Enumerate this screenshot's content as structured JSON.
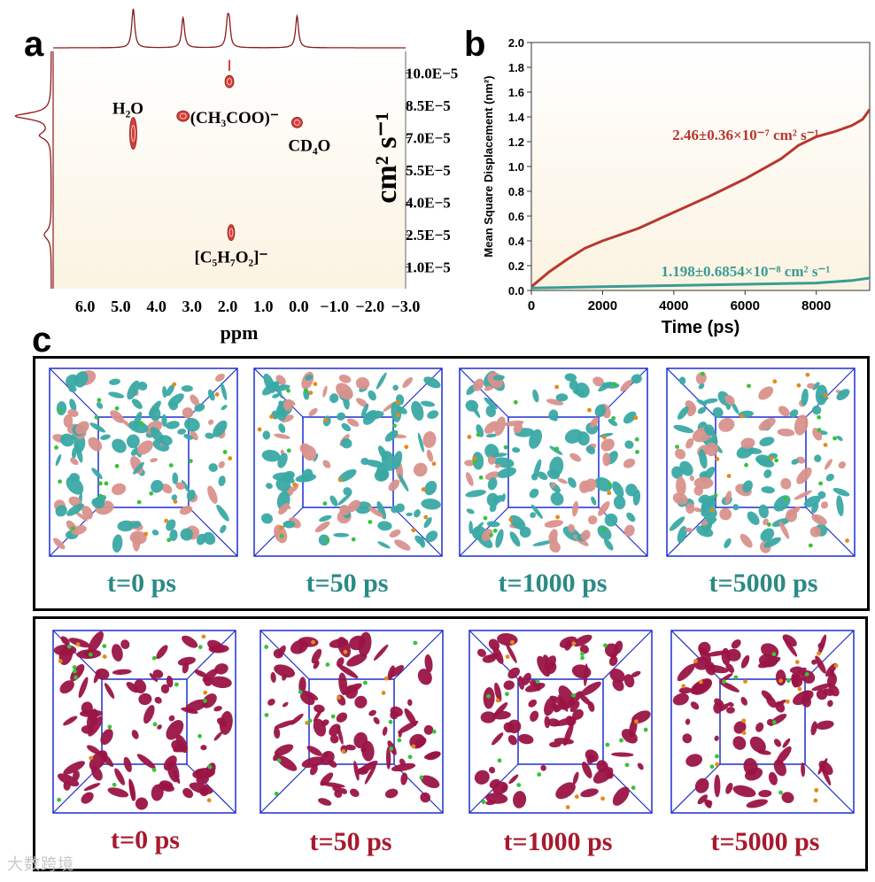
{
  "panels": {
    "a": "a",
    "b": "b",
    "c": "c"
  },
  "chart_data": [
    {
      "type": "heatmap",
      "name": "DOSY NMR spectrum",
      "xlabel": "ppm",
      "ylabel": "cm² s⁻¹",
      "xlim": [
        6.9,
        -3.0
      ],
      "x_ticks": [
        {
          "value": 6.0,
          "label": "6.0"
        },
        {
          "value": 5.0,
          "label": "5.0"
        },
        {
          "value": 4.0,
          "label": "4.0"
        },
        {
          "value": 3.0,
          "label": "3.0"
        },
        {
          "value": 2.0,
          "label": "2.0"
        },
        {
          "value": 1.0,
          "label": "1.0"
        },
        {
          "value": 0.0,
          "label": "0.0"
        },
        {
          "value": -1.0,
          "label": "−1.0"
        },
        {
          "value": -2.0,
          "label": "−2.0"
        },
        {
          "value": -3.0,
          "label": "−3.0"
        }
      ],
      "y_ticks": [
        {
          "value": 10.0,
          "label": "10.0E−5"
        },
        {
          "value": 8.5,
          "label": "8.5E−5"
        },
        {
          "value": 7.0,
          "label": "7.0E−5"
        },
        {
          "value": 5.5,
          "label": "5.5E−5"
        },
        {
          "value": 4.0,
          "label": "4.0E−5"
        },
        {
          "value": 2.5,
          "label": "2.5E−5"
        },
        {
          "value": 1.0,
          "label": "1.0E−5"
        }
      ],
      "signals": [
        {
          "name": "water-signal",
          "ppm": 4.65,
          "diffusion": 7.2,
          "label": "H₂O"
        },
        {
          "name": "acetate-signal",
          "ppm": 3.25,
          "diffusion": 8.0,
          "label": "(CH₃COO)⁻"
        },
        {
          "name": "acac-signal",
          "ppm": 1.9,
          "diffusion": 2.6,
          "label": "[C₅H₇O₂]⁻"
        },
        {
          "name": "methanol-signal",
          "ppm": 0.05,
          "diffusion": 7.7,
          "label": "CD₄O"
        },
        {
          "name": "signal-2ppm",
          "ppm": 1.95,
          "diffusion": 9.6,
          "label": ""
        }
      ],
      "projection_peaks_ppm": [
        4.65,
        3.25,
        2.0,
        1.95,
        0.05
      ],
      "projection_peaks_diffusion": [
        8.0,
        7.0,
        2.5
      ]
    },
    {
      "type": "line",
      "name": "Mean square displacement",
      "xlabel": "Time (ps)",
      "ylabel": "Mean Square Displacement (nm²)",
      "xlim": [
        0,
        9500
      ],
      "ylim": [
        0,
        2.0
      ],
      "x_ticks": [
        0,
        2000,
        4000,
        6000,
        8000
      ],
      "y_ticks": [
        0.0,
        0.2,
        0.4,
        0.6,
        0.8,
        1.0,
        1.2,
        1.4,
        1.6,
        1.8,
        2.0
      ],
      "series": [
        {
          "name": "upper",
          "color": "#b8372f",
          "annotation": "2.46±0.36×10⁻⁷ cm² s⁻¹",
          "x": [
            0,
            500,
            1000,
            1500,
            2000,
            3000,
            4000,
            5000,
            6000,
            7000,
            7500,
            8000,
            8500,
            9000,
            9300,
            9500
          ],
          "y": [
            0.03,
            0.15,
            0.25,
            0.34,
            0.4,
            0.5,
            0.63,
            0.76,
            0.9,
            1.06,
            1.17,
            1.24,
            1.28,
            1.33,
            1.38,
            1.46
          ]
        },
        {
          "name": "lower",
          "color": "#3a9c93",
          "annotation": "1.198±0.6854×10⁻⁸ cm² s⁻¹",
          "x": [
            0,
            2000,
            4000,
            6000,
            8000,
            9000,
            9500
          ],
          "y": [
            0.02,
            0.03,
            0.04,
            0.05,
            0.06,
            0.08,
            0.1
          ]
        }
      ]
    }
  ],
  "panel_c": {
    "top_row": {
      "label_color": "#2a8a86",
      "snapshots": [
        "t=0 ps",
        "t=50 ps",
        "t=1000 ps",
        "t=5000 ps"
      ]
    },
    "bottom_row": {
      "label_color": "#a8192e",
      "snapshots": [
        "t=0 ps",
        "t=50 ps",
        "t=1000 ps",
        "t=5000 ps"
      ]
    }
  },
  "colors": {
    "nmr_line": "#8b1a1a",
    "nmr_fill": "#fdf7ea",
    "nmr_peak": "#d4403a",
    "teal": "#3aa9a4",
    "pink": "#d9918c",
    "magenta": "#9a1445",
    "box_blue": "#1d2fd1",
    "green_dot": "#38c23a",
    "orange_dot": "#e48a1a"
  },
  "watermark": "大数跨境"
}
